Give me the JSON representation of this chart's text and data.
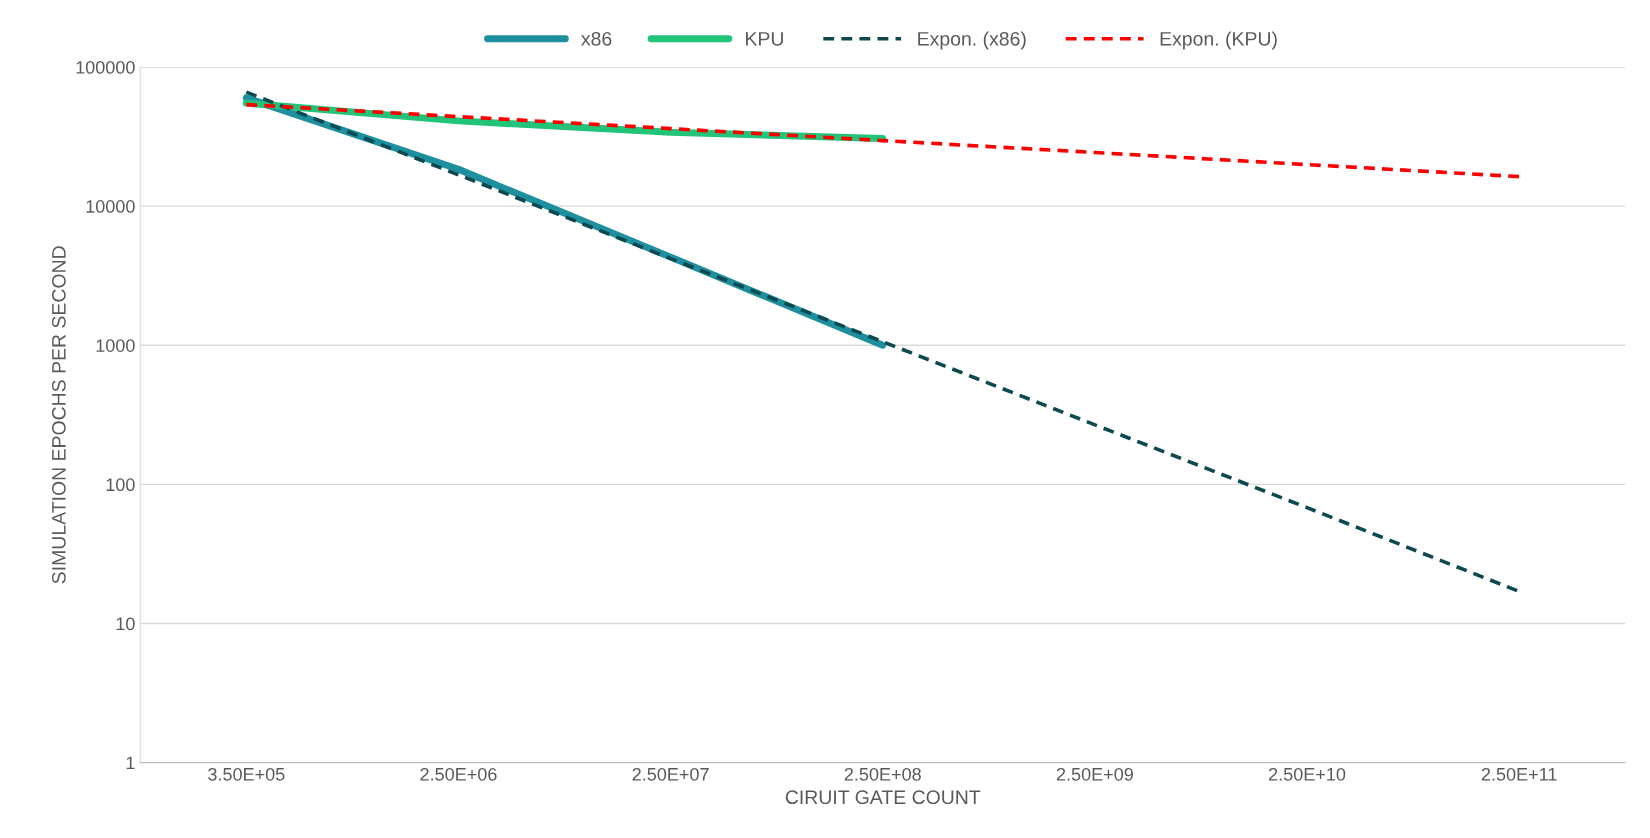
{
  "chart_data": {
    "type": "line",
    "xlabel": "CIRUIT GATE COUNT",
    "ylabel": "SIMULATION EPOCHS PER SECOND",
    "categories": [
      "3.50E+05",
      "2.50E+06",
      "2.50E+07",
      "2.50E+08",
      "2.50E+09",
      "2.50E+10",
      "2.50E+11"
    ],
    "log": "y",
    "ylim": [
      1,
      100000
    ],
    "yticks": [
      1,
      10,
      100,
      1000,
      10000,
      100000
    ],
    "grid": "y",
    "legend": "top",
    "marker": "none",
    "series": [
      {
        "name": "x86",
        "color": "#1e8f9e",
        "line_style": "solid",
        "values": [
          60000,
          18400,
          4300,
          1000,
          null,
          null,
          null
        ]
      },
      {
        "name": "KPU",
        "color": "#22c47a",
        "line_style": "solid",
        "values": [
          55000,
          41000,
          34000,
          30600,
          null,
          null,
          null
        ]
      },
      {
        "name": "Expon. (x86)",
        "color": "#0d4a50",
        "line_style": "dashed",
        "values": [
          66000,
          16800,
          4200,
          1060,
          268,
          68,
          17
        ]
      },
      {
        "name": "Expon. (KPU)",
        "color": "#ff0000",
        "line_style": "dashed",
        "values": [
          53700,
          44000,
          36100,
          29600,
          24300,
          19900,
          16300
        ]
      }
    ]
  }
}
